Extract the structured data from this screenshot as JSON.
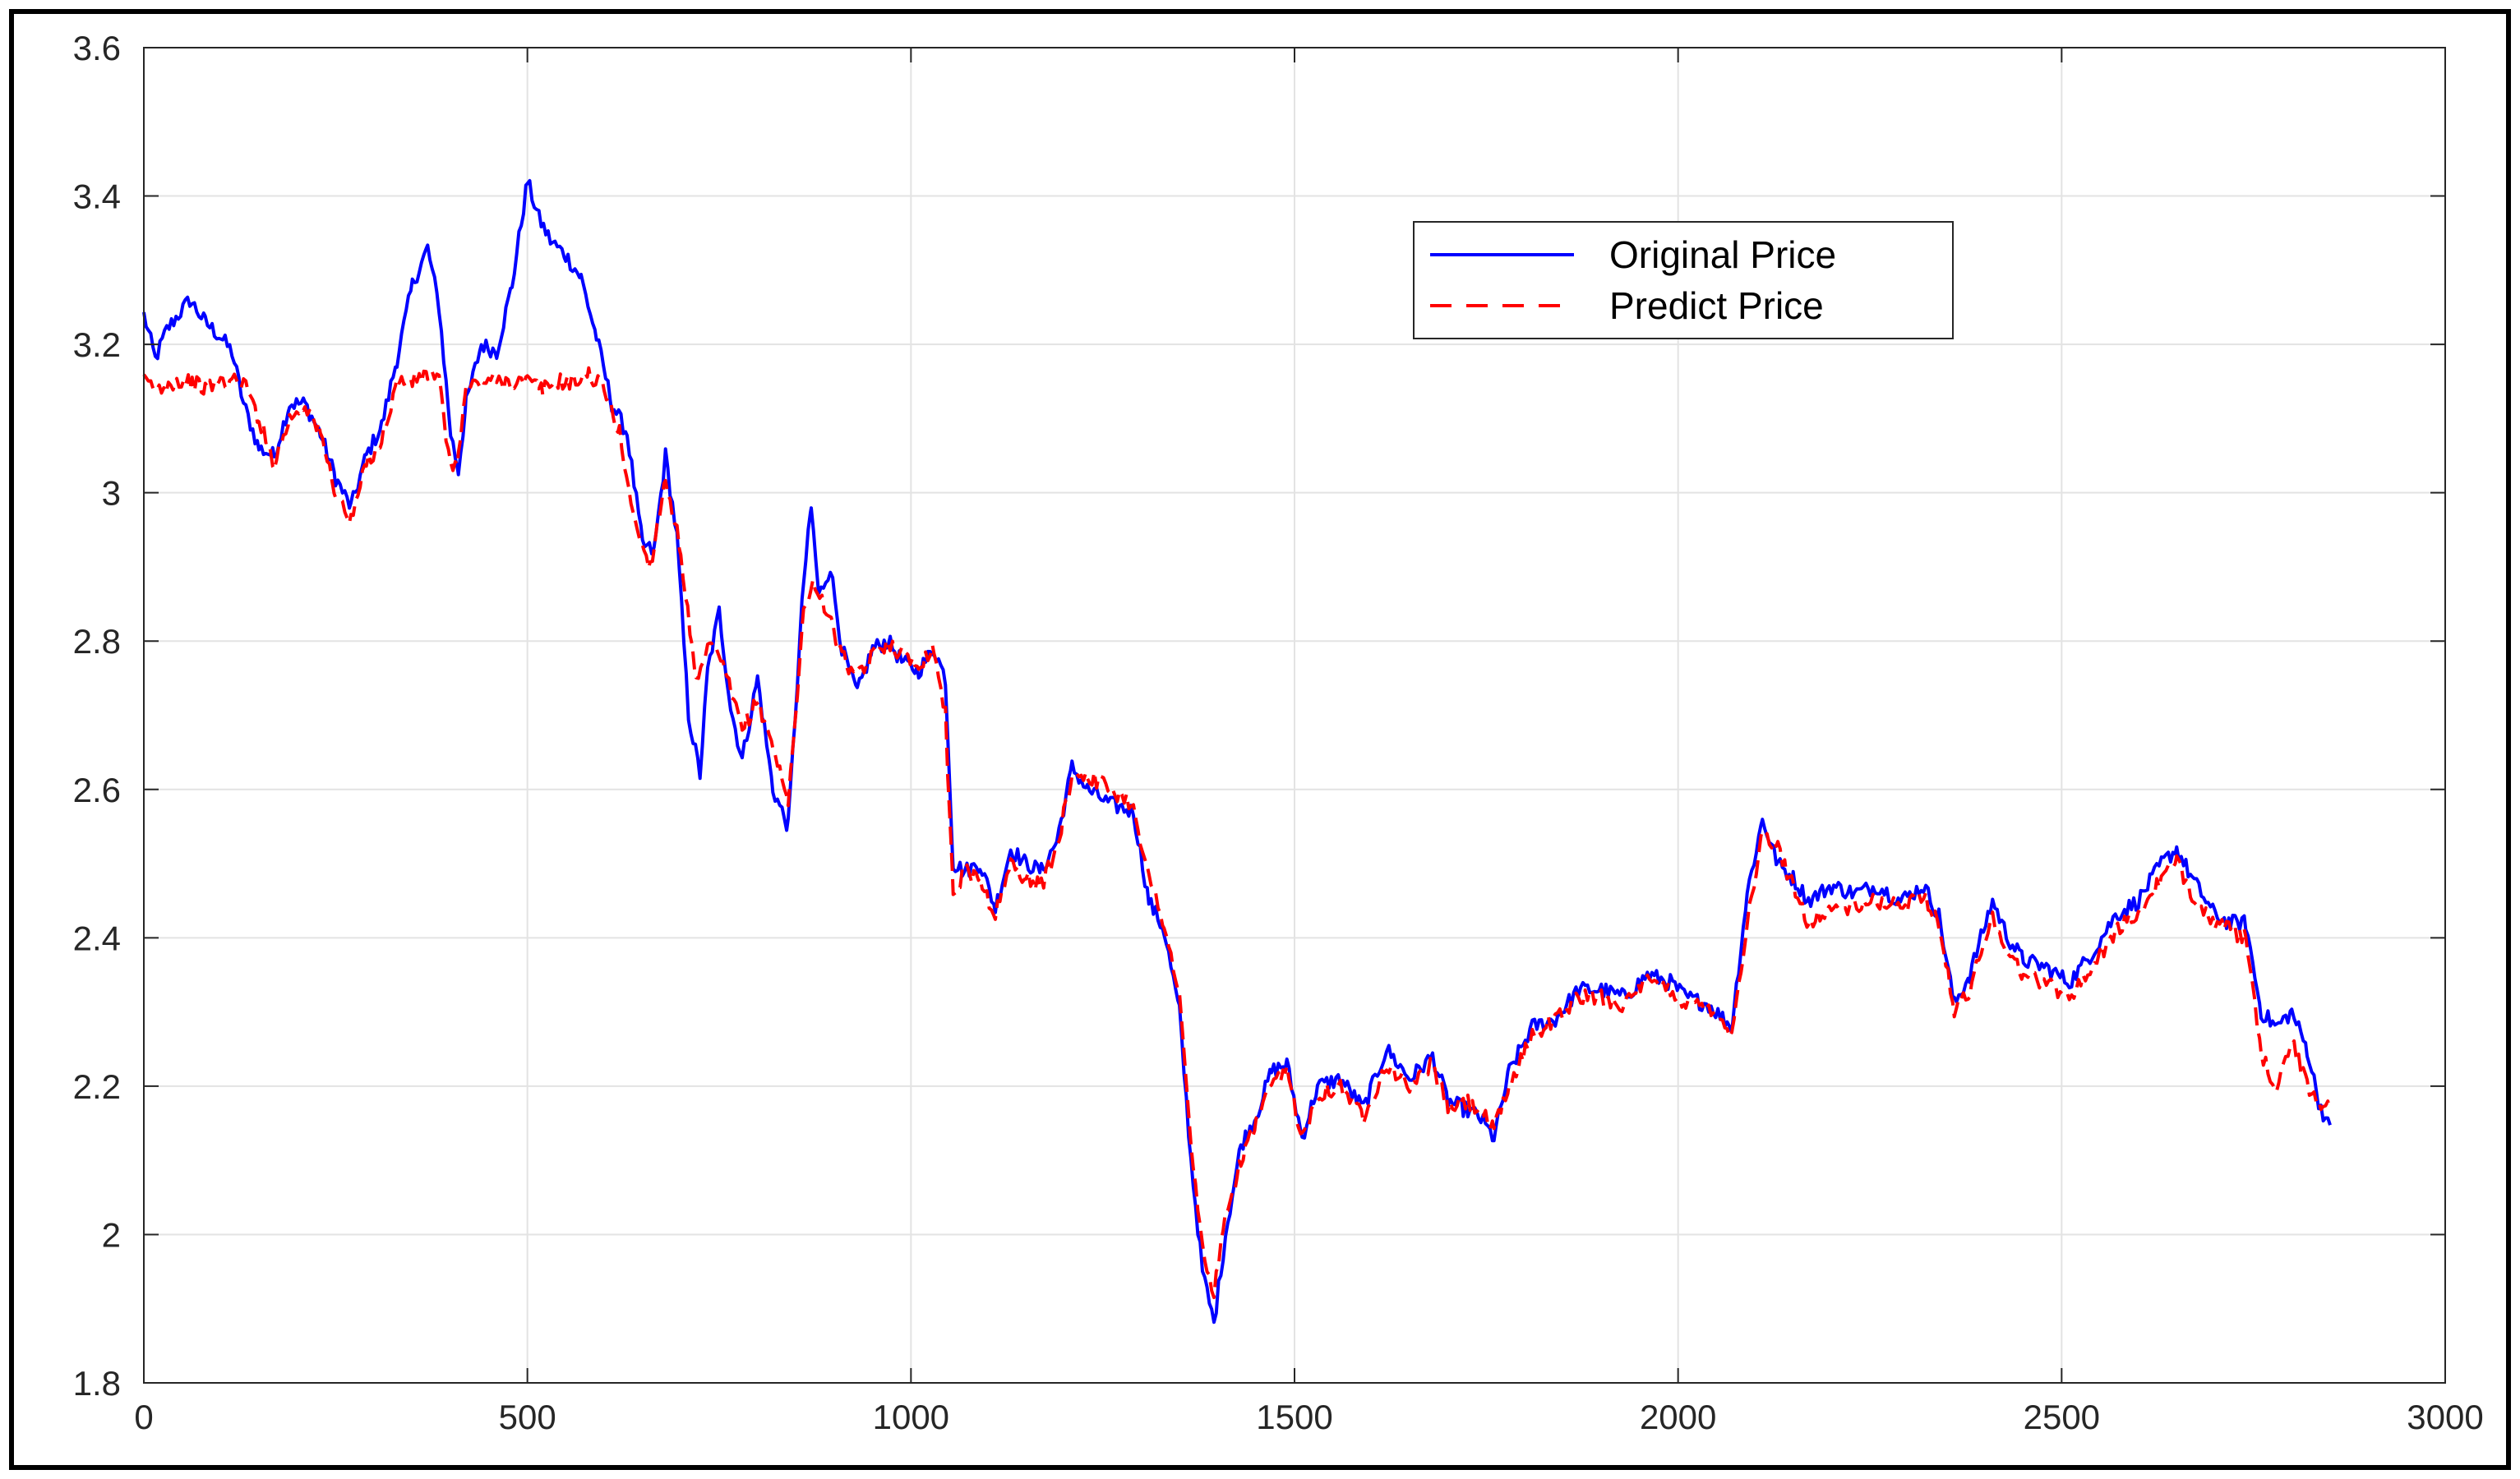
{
  "chart_data": {
    "type": "line",
    "title": "",
    "xlabel": "",
    "ylabel": "",
    "xlim": [
      0,
      3000
    ],
    "ylim": [
      1.8,
      3.6
    ],
    "xticks": [
      0,
      500,
      1000,
      1500,
      2000,
      2500,
      3000
    ],
    "yticks": [
      1.8,
      2,
      2.2,
      2.4,
      2.6,
      2.8,
      3,
      3.2,
      3.4,
      3.6
    ],
    "xtick_labels": [
      "0",
      "500",
      "1000",
      "1500",
      "2000",
      "2500",
      "3000"
    ],
    "ytick_labels": [
      "1.8",
      "2",
      "2.2",
      "2.4",
      "2.6",
      "2.8",
      "3",
      "3.2",
      "3.4",
      "3.6"
    ],
    "grid": true,
    "legend_position": "top-right",
    "series": [
      {
        "name": "Original Price",
        "color": "#0000ff",
        "style": "solid",
        "x": [
          0,
          15,
          30,
          45,
          60,
          80,
          100,
          115,
          130,
          150,
          170,
          190,
          210,
          230,
          250,
          270,
          290,
          310,
          330,
          350,
          370,
          385,
          400,
          410,
          420,
          440,
          460,
          480,
          500,
          515,
          530,
          550,
          570,
          590,
          610,
          630,
          650,
          665,
          680,
          695,
          710,
          725,
          735,
          750,
          765,
          780,
          800,
          820,
          840,
          860,
          870,
          880,
          895,
          910,
          930,
          950,
          970,
          990,
          1010,
          1030,
          1045,
          1055,
          1070,
          1090,
          1110,
          1130,
          1150,
          1170,
          1190,
          1210,
          1230,
          1260,
          1290,
          1310,
          1330,
          1350,
          1365,
          1380,
          1395,
          1410,
          1430,
          1450,
          1470,
          1490,
          1510,
          1530,
          1560,
          1590,
          1620,
          1650,
          1680,
          1700,
          1720,
          1740,
          1760,
          1780,
          1810,
          1840,
          1870,
          1900,
          1930,
          1960,
          1990,
          2010,
          2040,
          2070,
          2090,
          2110,
          2130,
          2150,
          2170,
          2200,
          2230,
          2260,
          2290,
          2320,
          2340,
          2360,
          2380,
          2410,
          2430,
          2450,
          2480,
          2510,
          2540,
          2570,
          2600,
          2630,
          2650,
          2670,
          2700,
          2720,
          2740,
          2760,
          2780,
          2800,
          2820,
          2835,
          2850
        ],
        "y": [
          3.24,
          3.18,
          3.22,
          3.24,
          3.26,
          3.23,
          3.21,
          3.19,
          3.12,
          3.06,
          3.05,
          3.12,
          3.12,
          3.08,
          3.02,
          2.98,
          3.05,
          3.09,
          3.18,
          3.28,
          3.33,
          3.25,
          3.08,
          3.03,
          3.12,
          3.2,
          3.19,
          3.28,
          3.42,
          3.37,
          3.34,
          3.32,
          3.29,
          3.21,
          3.12,
          3.08,
          2.93,
          2.92,
          3.05,
          2.94,
          2.7,
          2.62,
          2.76,
          2.84,
          2.71,
          2.64,
          2.75,
          2.6,
          2.55,
          2.88,
          2.98,
          2.86,
          2.9,
          2.79,
          2.73,
          2.79,
          2.8,
          2.77,
          2.76,
          2.79,
          2.75,
          2.5,
          2.49,
          2.5,
          2.44,
          2.52,
          2.5,
          2.49,
          2.53,
          2.63,
          2.6,
          2.58,
          2.57,
          2.45,
          2.41,
          2.3,
          2.1,
          1.95,
          1.88,
          2.0,
          2.12,
          2.16,
          2.22,
          2.23,
          2.13,
          2.2,
          2.21,
          2.17,
          2.25,
          2.21,
          2.24,
          2.18,
          2.17,
          2.16,
          2.13,
          2.22,
          2.28,
          2.29,
          2.33,
          2.33,
          2.32,
          2.35,
          2.34,
          2.32,
          2.31,
          2.28,
          2.46,
          2.56,
          2.5,
          2.48,
          2.45,
          2.47,
          2.46,
          2.47,
          2.45,
          2.47,
          2.43,
          2.31,
          2.35,
          2.45,
          2.4,
          2.37,
          2.36,
          2.34,
          2.38,
          2.43,
          2.45,
          2.5,
          2.52,
          2.48,
          2.43,
          2.42,
          2.42,
          2.3,
          2.28,
          2.3,
          2.25,
          2.18,
          2.14
        ]
      },
      {
        "name": "Predict Price",
        "color": "#ff0000",
        "style": "dashed",
        "x": [
          0,
          20,
          40,
          60,
          80,
          100,
          130,
          150,
          170,
          190,
          210,
          230,
          250,
          270,
          290,
          310,
          330,
          350,
          370,
          385,
          400,
          410,
          420,
          440,
          460,
          480,
          500,
          520,
          540,
          560,
          580,
          600,
          620,
          640,
          660,
          680,
          700,
          720,
          740,
          760,
          780,
          800,
          820,
          840,
          860,
          875,
          890,
          910,
          930,
          950,
          970,
          990,
          1010,
          1030,
          1045,
          1055,
          1070,
          1090,
          1110,
          1130,
          1150,
          1170,
          1190,
          1210,
          1230,
          1260,
          1290,
          1310,
          1330,
          1350,
          1365,
          1380,
          1395,
          1410,
          1430,
          1450,
          1470,
          1490,
          1510,
          1530,
          1560,
          1590,
          1620,
          1650,
          1680,
          1700,
          1720,
          1740,
          1760,
          1780,
          1810,
          1840,
          1870,
          1900,
          1930,
          1960,
          1990,
          2010,
          2040,
          2070,
          2090,
          2110,
          2130,
          2150,
          2170,
          2200,
          2230,
          2260,
          2290,
          2320,
          2340,
          2360,
          2380,
          2410,
          2430,
          2450,
          2480,
          2510,
          2540,
          2570,
          2600,
          2630,
          2650,
          2670,
          2700,
          2720,
          2740,
          2760,
          2780,
          2800,
          2820,
          2835,
          2850
        ],
        "y": [
          3.15,
          3.14,
          3.15,
          3.15,
          3.14,
          3.15,
          3.15,
          3.1,
          3.04,
          3.1,
          3.12,
          3.08,
          3.0,
          2.96,
          3.04,
          3.07,
          3.15,
          3.15,
          3.16,
          3.15,
          3.03,
          3.05,
          3.14,
          3.15,
          3.15,
          3.15,
          3.15,
          3.14,
          3.15,
          3.15,
          3.16,
          3.14,
          3.08,
          2.96,
          2.9,
          3.02,
          2.92,
          2.74,
          2.8,
          2.75,
          2.68,
          2.72,
          2.66,
          2.58,
          2.84,
          2.88,
          2.84,
          2.78,
          2.75,
          2.78,
          2.8,
          2.78,
          2.77,
          2.79,
          2.7,
          2.46,
          2.49,
          2.48,
          2.43,
          2.5,
          2.48,
          2.47,
          2.52,
          2.62,
          2.62,
          2.6,
          2.58,
          2.48,
          2.42,
          2.32,
          2.12,
          1.98,
          1.92,
          2.02,
          2.1,
          2.15,
          2.2,
          2.22,
          2.13,
          2.19,
          2.2,
          2.16,
          2.23,
          2.2,
          2.23,
          2.17,
          2.18,
          2.17,
          2.14,
          2.2,
          2.27,
          2.29,
          2.32,
          2.32,
          2.31,
          2.34,
          2.33,
          2.31,
          2.31,
          2.27,
          2.42,
          2.54,
          2.52,
          2.47,
          2.42,
          2.44,
          2.44,
          2.45,
          2.44,
          2.46,
          2.42,
          2.3,
          2.33,
          2.43,
          2.38,
          2.35,
          2.34,
          2.32,
          2.36,
          2.41,
          2.43,
          2.48,
          2.5,
          2.46,
          2.42,
          2.41,
          2.4,
          2.24,
          2.2,
          2.26,
          2.2,
          2.18,
          2.17
        ]
      }
    ]
  }
}
